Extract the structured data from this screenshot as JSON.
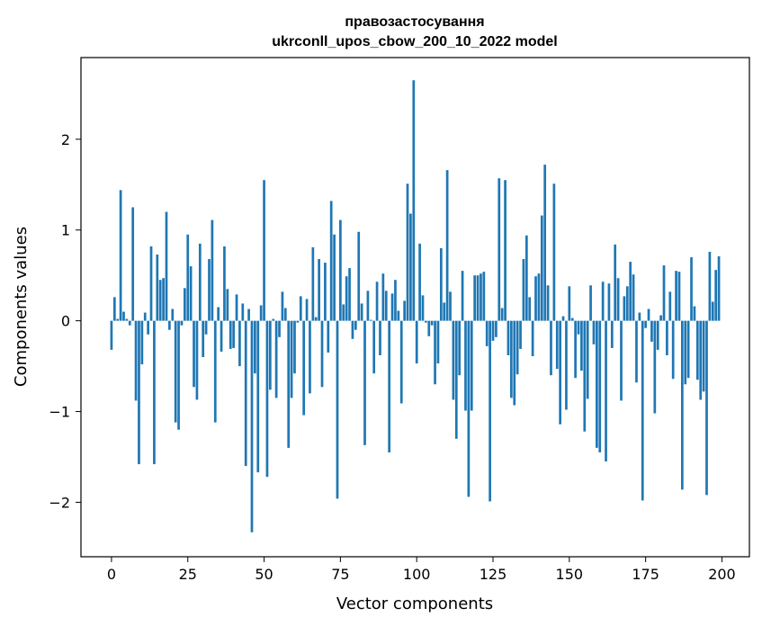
{
  "chart_data": {
    "type": "bar",
    "title": "правозастосування",
    "subtitle": "ukrconll_upos_cbow_200_10_2022 model",
    "xlabel": "Vector components",
    "ylabel": "Components values",
    "xlim": [
      -10,
      209
    ],
    "ylim": [
      -2.6,
      2.9
    ],
    "xticks": [
      0,
      25,
      50,
      75,
      100,
      125,
      150,
      175,
      200
    ],
    "yticks": [
      -2,
      -1,
      0,
      1,
      2
    ],
    "ytick_labels": [
      "−2",
      "−1",
      "0",
      "1",
      "2"
    ],
    "bar_color": "#1f77b4",
    "grid": false,
    "legend": "none",
    "x": [
      0,
      1,
      2,
      3,
      4,
      5,
      6,
      7,
      8,
      9,
      10,
      11,
      12,
      13,
      14,
      15,
      16,
      17,
      18,
      19,
      20,
      21,
      22,
      23,
      24,
      25,
      26,
      27,
      28,
      29,
      30,
      31,
      32,
      33,
      34,
      35,
      36,
      37,
      38,
      39,
      40,
      41,
      42,
      43,
      44,
      45,
      46,
      47,
      48,
      49,
      50,
      51,
      52,
      53,
      54,
      55,
      56,
      57,
      58,
      59,
      60,
      61,
      62,
      63,
      64,
      65,
      66,
      67,
      68,
      69,
      70,
      71,
      72,
      73,
      74,
      75,
      76,
      77,
      78,
      79,
      80,
      81,
      82,
      83,
      84,
      85,
      86,
      87,
      88,
      89,
      90,
      91,
      92,
      93,
      94,
      95,
      96,
      97,
      98,
      99,
      100,
      101,
      102,
      103,
      104,
      105,
      106,
      107,
      108,
      109,
      110,
      111,
      112,
      113,
      114,
      115,
      116,
      117,
      118,
      119,
      120,
      121,
      122,
      123,
      124,
      125,
      126,
      127,
      128,
      129,
      130,
      131,
      132,
      133,
      134,
      135,
      136,
      137,
      138,
      139,
      140,
      141,
      142,
      143,
      144,
      145,
      146,
      147,
      148,
      149,
      150,
      151,
      152,
      153,
      154,
      155,
      156,
      157,
      158,
      159,
      160,
      161,
      162,
      163,
      164,
      165,
      166,
      167,
      168,
      169,
      170,
      171,
      172,
      173,
      174,
      175,
      176,
      177,
      178,
      179,
      180,
      181,
      182,
      183,
      184,
      185,
      186,
      187,
      188,
      189,
      190,
      191,
      192,
      193,
      194,
      195,
      196,
      197,
      198,
      199
    ],
    "values": [
      -0.32,
      0.26,
      0.02,
      1.44,
      0.1,
      0.02,
      -0.05,
      1.25,
      -0.88,
      -1.58,
      -0.48,
      0.09,
      -0.15,
      0.82,
      -1.58,
      0.73,
      0.45,
      0.47,
      1.2,
      -0.1,
      0.13,
      -1.12,
      -1.2,
      -0.05,
      0.36,
      0.95,
      0.6,
      -0.73,
      -0.87,
      0.85,
      -0.4,
      -0.15,
      0.68,
      1.11,
      -1.12,
      0.15,
      -0.34,
      0.82,
      0.35,
      -0.31,
      -0.3,
      0.29,
      -0.5,
      0.19,
      -1.6,
      0.13,
      -2.33,
      -0.58,
      -1.67,
      0.17,
      1.55,
      -1.72,
      -0.76,
      0.02,
      -0.85,
      -0.18,
      0.32,
      0.14,
      -1.4,
      -0.85,
      -0.58,
      -0.02,
      0.27,
      -1.04,
      0.24,
      -0.8,
      0.81,
      0.04,
      0.68,
      -0.73,
      0.64,
      -0.35,
      1.32,
      0.95,
      -1.96,
      1.11,
      0.18,
      0.49,
      0.58,
      -0.2,
      -0.1,
      0.98,
      0.19,
      -1.37,
      0.33,
      0.01,
      -0.58,
      0.43,
      -0.38,
      0.52,
      0.33,
      -1.45,
      0.3,
      0.45,
      0.11,
      -0.91,
      0.22,
      1.51,
      1.18,
      2.65,
      -0.47,
      0.85,
      0.28,
      -0.02,
      -0.17,
      -0.05,
      -0.7,
      -0.47,
      0.8,
      0.2,
      1.66,
      0.32,
      -0.87,
      -1.3,
      -0.6,
      0.55,
      -0.99,
      -1.94,
      -0.99,
      0.5,
      0.5,
      0.52,
      0.54,
      -0.28,
      -1.99,
      -0.22,
      -0.18,
      1.57,
      0.14,
      1.55,
      -0.38,
      -0.85,
      -0.93,
      -0.59,
      -0.31,
      0.68,
      0.94,
      0.26,
      -0.39,
      0.49,
      0.52,
      1.16,
      1.72,
      0.39,
      -0.6,
      1.51,
      -0.53,
      -1.14,
      0.05,
      -0.98,
      0.38,
      0.03,
      -0.63,
      -0.15,
      -0.55,
      -1.22,
      -0.86,
      0.39,
      -0.26,
      -1.4,
      -1.45,
      0.43,
      -1.55,
      0.41,
      -0.3,
      0.84,
      0.47,
      -0.88,
      0.27,
      0.38,
      0.65,
      0.51,
      -0.68,
      0.09,
      -1.98,
      -0.08,
      0.13,
      -0.23,
      -1.02,
      -0.32,
      0.06,
      0.61,
      -0.38,
      0.32,
      -0.64,
      0.55,
      0.54,
      -1.86,
      -0.7,
      -0.63,
      0.7,
      0.16,
      -0.65,
      -0.87,
      -0.78,
      -1.92,
      0.76,
      0.21,
      0.56,
      0.71
    ]
  }
}
